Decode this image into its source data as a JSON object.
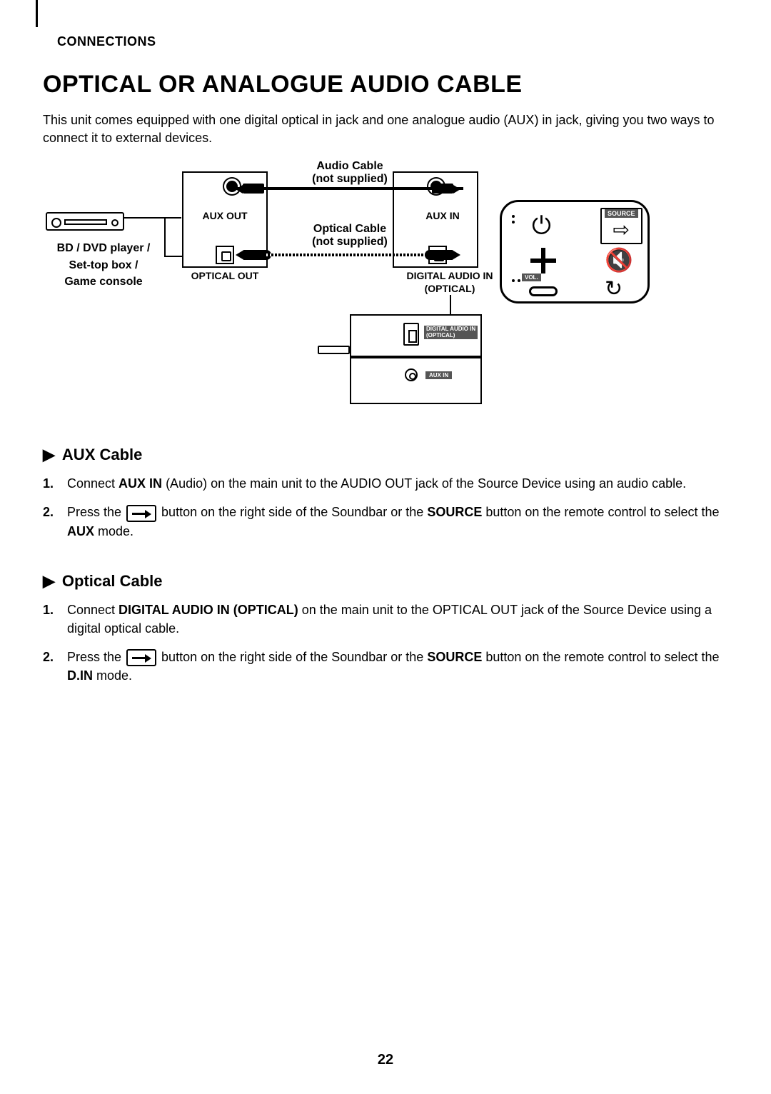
{
  "section_label": "CONNECTIONS",
  "title": "OPTICAL OR ANALOGUE AUDIO CABLE",
  "intro": "This unit comes equipped with one digital optical in jack and one analogue audio (AUX) in jack, giving you two ways to connect it to external devices.",
  "diagram": {
    "audio_cable_label_l1": "Audio Cable",
    "audio_cable_label_l2": "(not supplied)",
    "optical_cable_label_l1": "Optical Cable",
    "optical_cable_label_l2": "(not supplied)",
    "aux_out": "AUX OUT",
    "aux_in": "AUX IN",
    "optical_out": "OPTICAL OUT",
    "digital_in_l1": "DIGITAL AUDIO IN",
    "digital_in_l2": "(OPTICAL)",
    "device_l1": "BD / DVD player /",
    "device_l2": "Set-top box /",
    "device_l3": "Game console",
    "sb_port1_l1": "DIGITAL AUDIO IN",
    "sb_port1_l2": "(OPTICAL)",
    "sb_port2": "AUX IN",
    "remote_source": "SOURCE",
    "remote_vol": "VOL."
  },
  "aux_section": {
    "heading": "AUX Cable",
    "step1_num": "1.",
    "step1_a": "Connect ",
    "step1_b": "AUX IN",
    "step1_c": " (Audio) on the main unit to the AUDIO OUT jack of the Source Device using an audio cable.",
    "step2_num": "2.",
    "step2_a": "Press the ",
    "step2_b": " button on the right side of the Soundbar or the ",
    "step2_c": "SOURCE",
    "step2_d": " button on the remote control to select the ",
    "step2_e": "AUX",
    "step2_f": " mode."
  },
  "opt_section": {
    "heading": "Optical Cable",
    "step1_num": "1.",
    "step1_a": "Connect ",
    "step1_b": "DIGITAL AUDIO IN (OPTICAL)",
    "step1_c": " on the main unit to the OPTICAL OUT jack of the Source Device using a digital optical cable.",
    "step2_num": "2.",
    "step2_a": "Press the ",
    "step2_b": " button on the right side of the Soundbar or the ",
    "step2_c": "SOURCE",
    "step2_d": " button on the remote control to select the ",
    "step2_e": "D.IN",
    "step2_f": " mode."
  },
  "page_number": "22",
  "colors": {
    "text": "#000000",
    "background": "#ffffff",
    "badge_bg": "#555555",
    "badge_fg": "#ffffff"
  }
}
